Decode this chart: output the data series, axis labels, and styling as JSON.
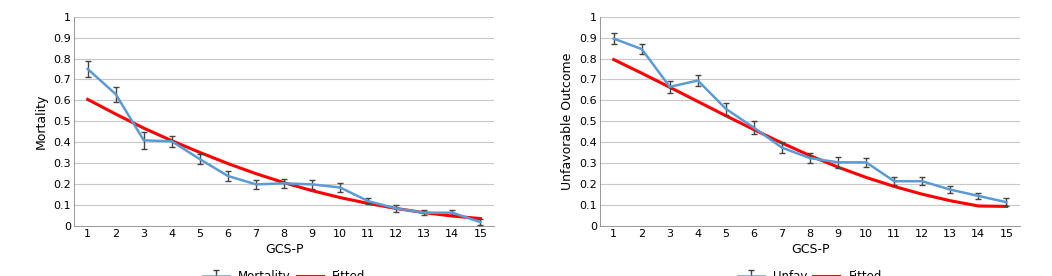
{
  "gcs": [
    1,
    2,
    3,
    4,
    5,
    6,
    7,
    8,
    9,
    10,
    11,
    12,
    13,
    14,
    15
  ],
  "mortality_y": [
    0.75,
    0.63,
    0.41,
    0.405,
    0.32,
    0.24,
    0.2,
    0.205,
    0.2,
    0.185,
    0.12,
    0.085,
    0.065,
    0.065,
    0.02
  ],
  "mortality_err": [
    0.04,
    0.035,
    0.04,
    0.025,
    0.025,
    0.025,
    0.02,
    0.02,
    0.02,
    0.02,
    0.015,
    0.015,
    0.012,
    0.012,
    0.015
  ],
  "mortality_fitted": [
    0.605,
    0.535,
    0.468,
    0.408,
    0.352,
    0.299,
    0.251,
    0.208,
    0.17,
    0.137,
    0.109,
    0.085,
    0.065,
    0.049,
    0.037
  ],
  "unfav_y": [
    0.895,
    0.845,
    0.665,
    0.695,
    0.56,
    0.47,
    0.375,
    0.325,
    0.305,
    0.305,
    0.215,
    0.215,
    0.175,
    0.145,
    0.115
  ],
  "unfav_err": [
    0.025,
    0.025,
    0.03,
    0.025,
    0.03,
    0.03,
    0.025,
    0.025,
    0.025,
    0.02,
    0.02,
    0.02,
    0.015,
    0.015,
    0.02
  ],
  "unfav_fitted": [
    0.795,
    0.73,
    0.663,
    0.595,
    0.527,
    0.461,
    0.397,
    0.337,
    0.282,
    0.233,
    0.19,
    0.153,
    0.122,
    0.097,
    0.095
  ],
  "line_color": "#5B9BD5",
  "fitted_color": "#FF0000",
  "background_color": "#FFFFFF",
  "grid_color": "#C8C8C8",
  "ylabel_left": "Mortality",
  "ylabel_right": "Unfavorable Outcome",
  "xlabel": "GCS-P",
  "legend_left": [
    "Mortality",
    "Fitted"
  ],
  "legend_right": [
    "Unfav",
    "Fitted"
  ],
  "ylim": [
    0,
    1
  ],
  "yticks": [
    0,
    0.1,
    0.2,
    0.3,
    0.4,
    0.5,
    0.6,
    0.7,
    0.8,
    0.9,
    1
  ],
  "xlim": [
    0.5,
    15.5
  ],
  "xticks": [
    1,
    2,
    3,
    4,
    5,
    6,
    7,
    8,
    9,
    10,
    11,
    12,
    13,
    14,
    15
  ]
}
